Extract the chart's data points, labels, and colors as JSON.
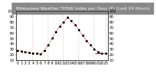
{
  "title": "Milwaukee Weather THSW Index per Hour (F) (Last 24 Hours)",
  "hours": [
    0,
    1,
    2,
    3,
    4,
    5,
    6,
    7,
    8,
    9,
    10,
    11,
    12,
    13,
    14,
    15,
    16,
    17,
    18,
    19,
    20,
    21,
    22,
    23
  ],
  "values": [
    28,
    26,
    25,
    24,
    23,
    22,
    21,
    28,
    38,
    50,
    62,
    72,
    80,
    88,
    82,
    75,
    65,
    55,
    45,
    38,
    30,
    25,
    22,
    22
  ],
  "line_color": "#dd0000",
  "marker_color": "#000000",
  "bg_color": "#ffffff",
  "title_bg": "#888888",
  "title_color": "#ffffff",
  "grid_color": "#aaaaaa",
  "ylim": [
    10,
    100
  ],
  "yticks": [
    10,
    20,
    30,
    40,
    50,
    60,
    70,
    80,
    90,
    100
  ],
  "xlabel_fontsize": 4,
  "ylabel_fontsize": 4,
  "title_fontsize": 4.5
}
